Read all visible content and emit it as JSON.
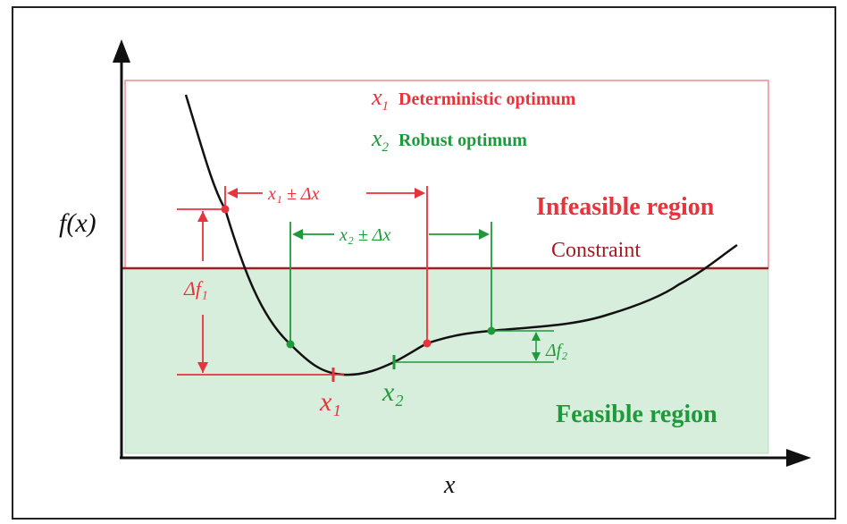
{
  "axes": {
    "y_label": "f(x)",
    "x_label": "x"
  },
  "legend": {
    "x1_symbol": "x",
    "x1_sub": "1",
    "x1_text": "Deterministic optimum",
    "x2_symbol": "x",
    "x2_sub": "2",
    "x2_text": "Robust optimum"
  },
  "regions": {
    "infeasible": "Infeasible region",
    "feasible": "Feasible region",
    "constraint": "Constraint"
  },
  "intervals": {
    "x1_range": "x₁ ± Δx",
    "x2_range": "x₂ ± Δx",
    "delta_f1": "Δf₁",
    "delta_f2": "Δf₂"
  },
  "points": {
    "x1_label": "x₁",
    "x2_label": "x₂"
  },
  "colors": {
    "red": "#e8323c",
    "green": "#1e9a3a",
    "constraint": "#a01f26",
    "feasible_fill": "#d7eedc",
    "infeasible_border": "#f08a8f"
  }
}
